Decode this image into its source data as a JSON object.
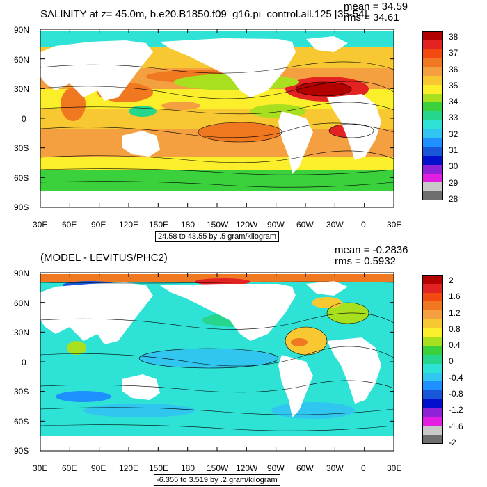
{
  "panel_top": {
    "title": "SALINITY at z=  45.0m, b.e20.B1850.f09_g16.pi_control.all.125 [35-54]",
    "mean_text": "mean = 34.59",
    "rms_text": "rms = 34.61",
    "range_text": "24.58 to 43.55 by .5 gram/kilogram",
    "colorbar": {
      "labels": [
        "38",
        "37",
        "36",
        "35",
        "34",
        "33",
        "32",
        "31",
        "30",
        "29",
        "28"
      ],
      "colors": [
        "#b30000",
        "#e32222",
        "#f24a10",
        "#f07820",
        "#f5a040",
        "#f7c832",
        "#fbee2b",
        "#a8e020",
        "#3ad13c",
        "#26d68c",
        "#2ee3d6",
        "#31c6f0",
        "#1e90ff",
        "#1858d8",
        "#0010cc",
        "#8f22d6",
        "#e41ee0",
        "#c8c8c8",
        "#6e6e6e"
      ]
    }
  },
  "panel_bottom": {
    "title": "(MODEL - LEVITUS/PHC2)",
    "mean_text": "mean = -0.2836",
    "rms_text": "rms = 0.5932",
    "range_text": "-6.355 to 3.519 by .2 gram/kilogram",
    "colorbar": {
      "labels": [
        "2",
        "1.6",
        "1.2",
        "0.8",
        "0.4",
        "0",
        "-0.4",
        "-0.8",
        "-1.2",
        "-1.6",
        "-2"
      ],
      "colors": [
        "#b30000",
        "#e32222",
        "#f24a10",
        "#f07820",
        "#f5a040",
        "#f7c832",
        "#fbee2b",
        "#a8e020",
        "#3ad13c",
        "#26d68c",
        "#2ee3d6",
        "#31c6f0",
        "#1e90ff",
        "#1858d8",
        "#0010cc",
        "#8f22d6",
        "#e41ee0",
        "#c8c8c8",
        "#6e6e6e"
      ]
    }
  },
  "axes": {
    "lat_labels": [
      "90N",
      "60N",
      "30N",
      "0",
      "30S",
      "60S",
      "90S"
    ],
    "lon_labels": [
      "30E",
      "60E",
      "90E",
      "120E",
      "150E",
      "180",
      "150W",
      "120W",
      "90W",
      "60W",
      "30W",
      "0",
      "30E"
    ]
  }
}
